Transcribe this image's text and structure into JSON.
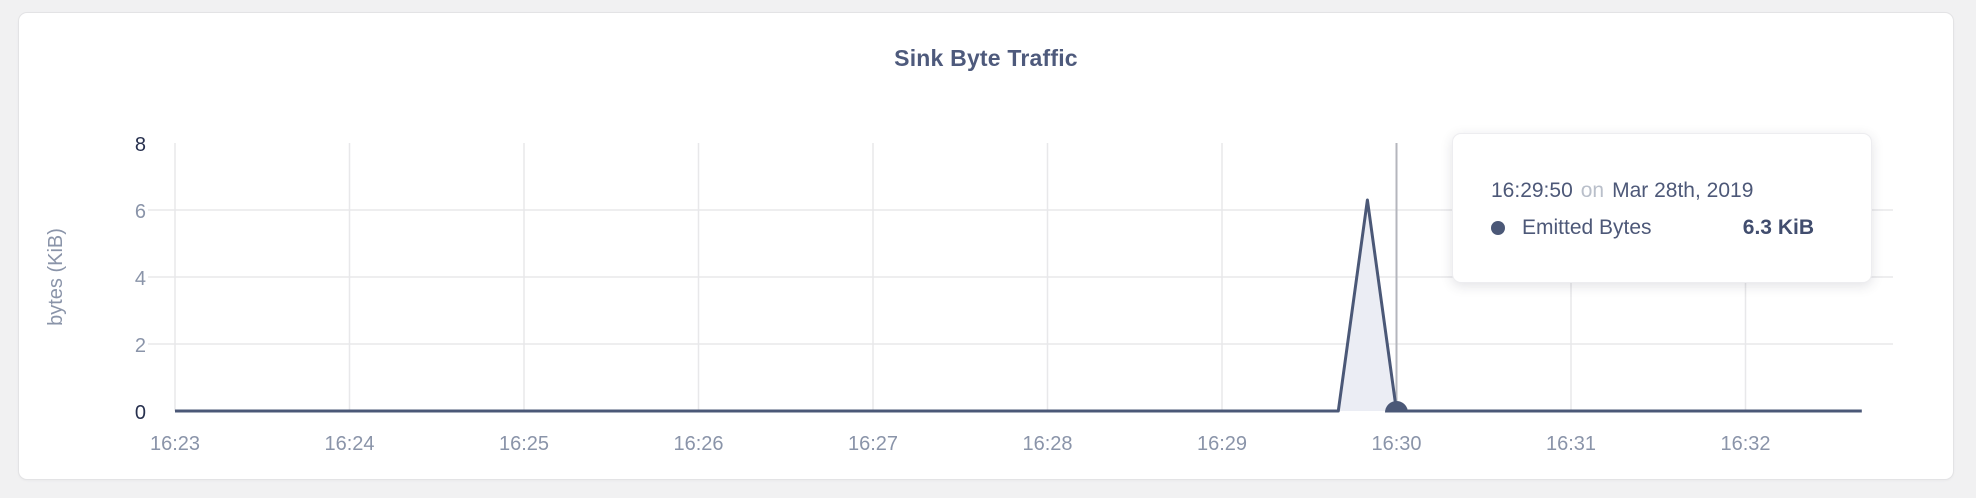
{
  "chart_data": {
    "type": "area",
    "title": "Sink Byte Traffic",
    "xlabel": "",
    "ylabel": "bytes (KiB)",
    "ylim": [
      0,
      8
    ],
    "y_ticks": [
      0,
      2,
      4,
      6,
      8
    ],
    "x_ticks": [
      "16:23",
      "16:24",
      "16:25",
      "16:26",
      "16:27",
      "16:28",
      "16:29",
      "16:30",
      "16:31",
      "16:32"
    ],
    "grid": true,
    "legend": "none",
    "series": [
      {
        "name": "Emitted Bytes",
        "color": "#4b5877",
        "fill_color": "#ebedf4",
        "points": [
          {
            "t": "16:23:00",
            "v": 0
          },
          {
            "t": "16:29:40",
            "v": 0
          },
          {
            "t": "16:29:50",
            "v": 6.3
          },
          {
            "t": "16:30:00",
            "v": 0
          },
          {
            "t": "16:32:40",
            "v": 0
          }
        ]
      }
    ],
    "hover": {
      "crosshair_time": "16:30:00",
      "marker_time": "16:30:00",
      "marker_value": 0
    }
  },
  "tooltip": {
    "time": "16:29:50",
    "connector": "on",
    "date": "Mar 28th, 2019",
    "series_label": "Emitted Bytes",
    "value": "6.3 KiB"
  },
  "colors": {
    "accent": "#4b5877",
    "area_fill": "#ebedf4",
    "grid": "#e8e8ea",
    "hover_line": "#b4b6bd",
    "tick_label": "#8a94a9",
    "tick_label_strong": "#27304e",
    "title_text": "#4e5a7c",
    "muted_text": "#b9bfca"
  }
}
